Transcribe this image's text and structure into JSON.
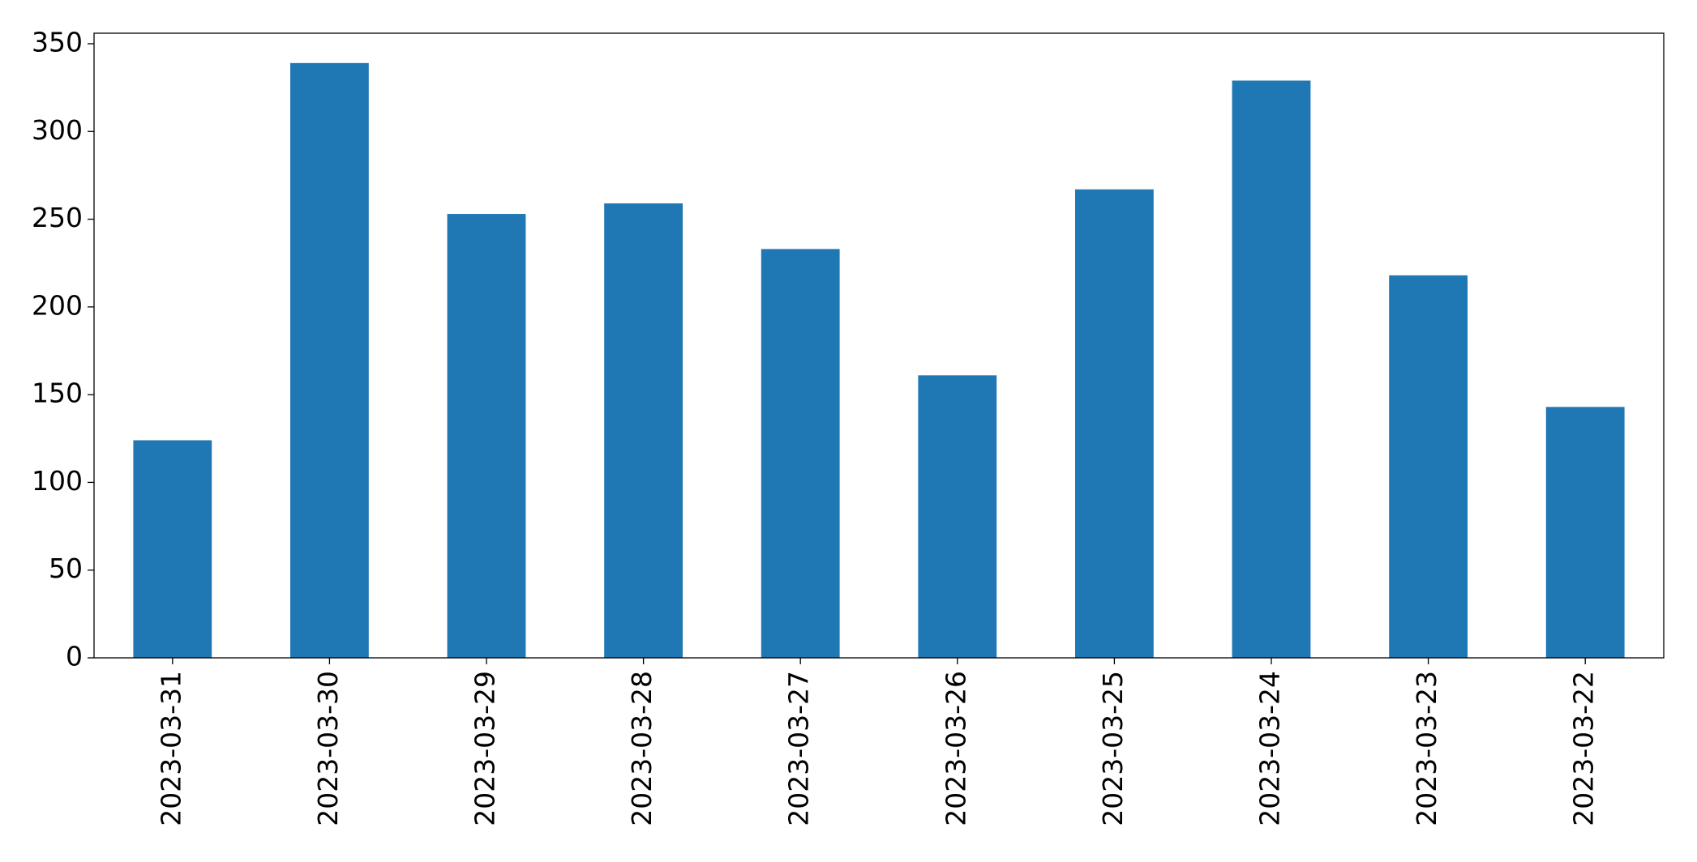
{
  "chart_data": {
    "type": "bar",
    "categories": [
      "2023-03-31",
      "2023-03-30",
      "2023-03-29",
      "2023-03-28",
      "2023-03-27",
      "2023-03-26",
      "2023-03-25",
      "2023-03-24",
      "2023-03-23",
      "2023-03-22"
    ],
    "values": [
      124,
      339,
      253,
      259,
      233,
      161,
      267,
      329,
      218,
      143
    ],
    "color": "#1f77b4",
    "ylim": [
      0,
      356
    ],
    "yticks": [
      0,
      50,
      100,
      150,
      200,
      250,
      300,
      350
    ],
    "grid": false
  }
}
